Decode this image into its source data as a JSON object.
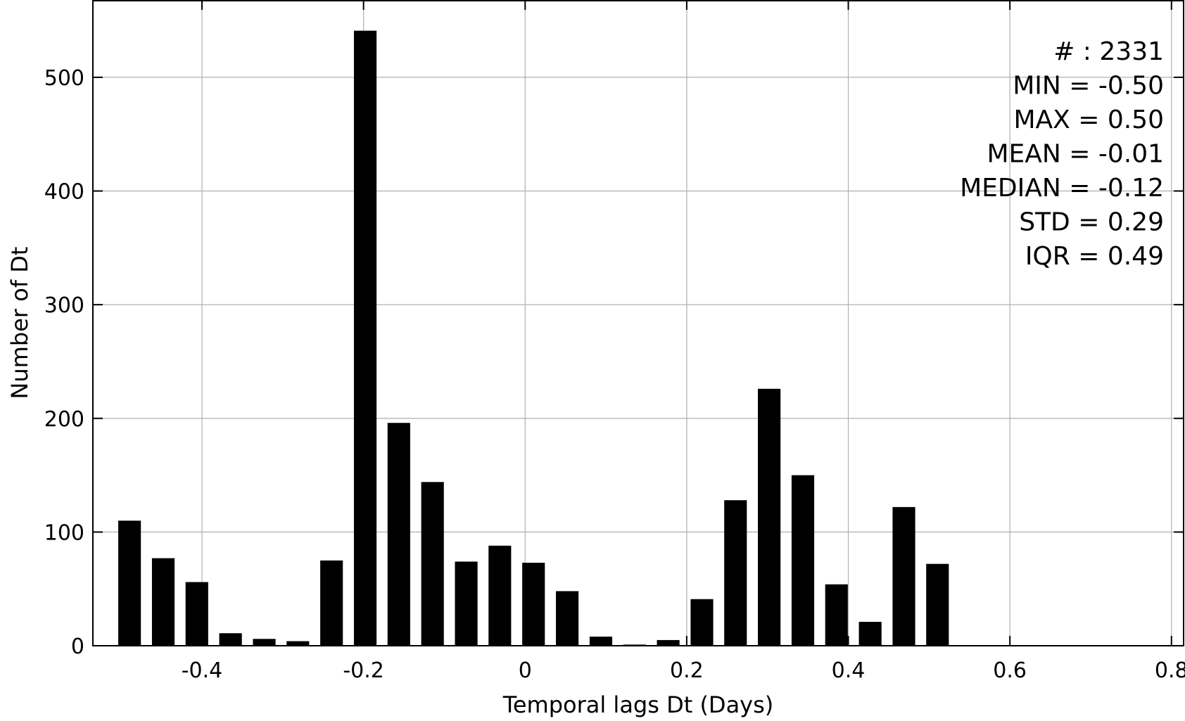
{
  "chart_data": {
    "type": "bar",
    "title": "",
    "xlabel": "Temporal lags Dt (Days)",
    "ylabel": "Number of Dt",
    "xlim": [
      -0.535,
      0.815
    ],
    "ylim": [
      0,
      568
    ],
    "grid": true,
    "bar_color": "#000000",
    "bar_width": 0.028,
    "x_ticks": [
      {
        "value": -0.4,
        "label": "-0.4"
      },
      {
        "value": -0.2,
        "label": "-0.2"
      },
      {
        "value": 0,
        "label": "0"
      },
      {
        "value": 0.2,
        "label": "0.2"
      },
      {
        "value": 0.4,
        "label": "0.4"
      },
      {
        "value": 0.6,
        "label": "0.6"
      },
      {
        "value": 0.8,
        "label": "0.8"
      }
    ],
    "y_ticks": [
      {
        "value": 0,
        "label": "0"
      },
      {
        "value": 100,
        "label": "100"
      },
      {
        "value": 200,
        "label": "200"
      },
      {
        "value": 300,
        "label": "300"
      },
      {
        "value": 400,
        "label": "400"
      },
      {
        "value": 500,
        "label": "500"
      }
    ],
    "x": [
      -0.4896,
      -0.4479,
      -0.4063,
      -0.3646,
      -0.3229,
      -0.2813,
      -0.2396,
      -0.1979,
      -0.1563,
      -0.1146,
      -0.0729,
      -0.0313,
      0.0104,
      0.0521,
      0.0938,
      0.1354,
      0.1771,
      0.2188,
      0.2604,
      0.3021,
      0.3438,
      0.3854,
      0.4271,
      0.4688,
      0.5104
    ],
    "values": [
      110,
      77,
      56,
      11,
      6,
      4,
      75,
      541,
      196,
      144,
      74,
      88,
      73,
      48,
      8,
      1,
      5,
      41,
      128,
      226,
      150,
      54,
      21,
      122,
      72
    ],
    "stats_box": {
      "position": "top-right",
      "lines": [
        "# : 2331",
        "MIN = -0.50",
        "MAX =  0.50",
        "MEAN = -0.01",
        "MEDIAN = -0.12",
        "STD = 0.29",
        "IQR = 0.49"
      ]
    }
  }
}
